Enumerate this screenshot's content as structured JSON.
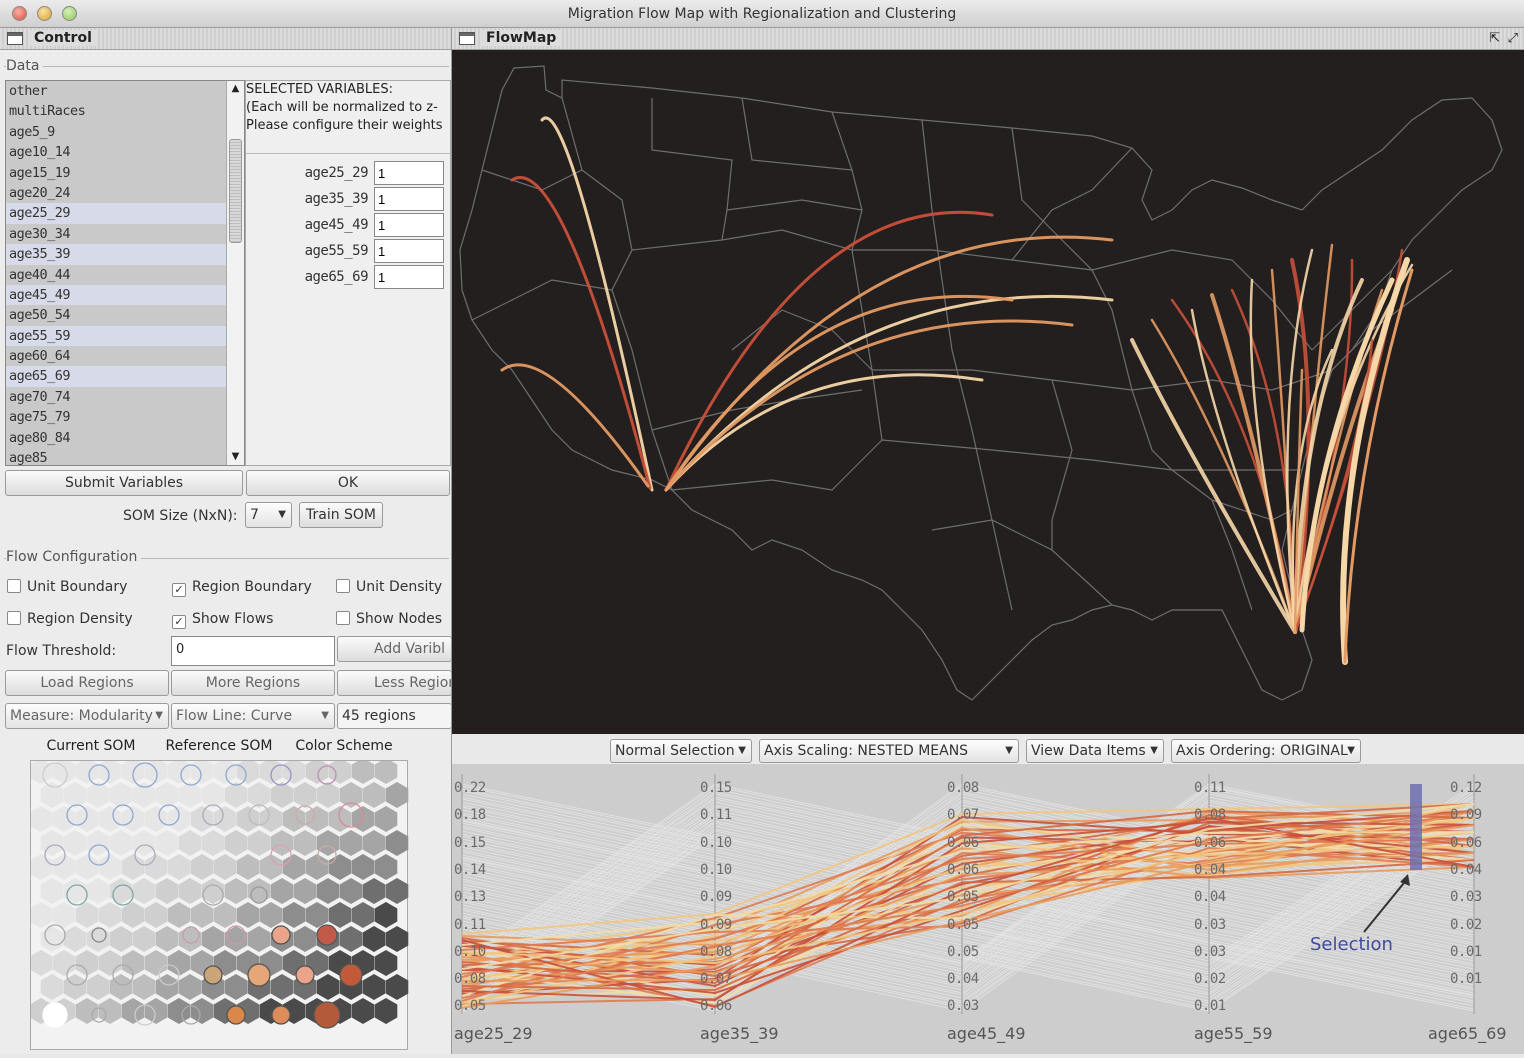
{
  "window": {
    "title": "Migration Flow Map with Regionalization and Clustering"
  },
  "control": {
    "panel_title": "Control",
    "data_group": "Data",
    "variables": [
      "other",
      "multiRaces",
      "age5_9",
      "age10_14",
      "age15_19",
      "age20_24",
      "age25_29",
      "age30_34",
      "age35_39",
      "age40_44",
      "age45_49",
      "age50_54",
      "age55_59",
      "age60_64",
      "age65_69",
      "age70_74",
      "age75_79",
      "age80_84",
      "age85"
    ],
    "selected_variables_text": [
      "SELECTED VARIABLES:",
      "(Each will be normalized to z-",
      "Please configure their weights"
    ],
    "weights": [
      {
        "name": "age25_29",
        "value": "1"
      },
      {
        "name": "age35_39",
        "value": "1"
      },
      {
        "name": "age45_49",
        "value": "1"
      },
      {
        "name": "age55_59",
        "value": "1"
      },
      {
        "name": "age65_69",
        "value": "1"
      }
    ],
    "submit_button": "Submit Variables",
    "ok_button": "OK",
    "som_size_label": "SOM Size (NxN):",
    "som_size_value": "7",
    "train_button": "Train SOM",
    "flow_group": "Flow Configuration",
    "checkboxes": {
      "unit_boundary": {
        "label": "Unit Boundary",
        "checked": false
      },
      "region_boundary": {
        "label": "Region Boundary",
        "checked": true
      },
      "unit_density": {
        "label": "Unit Density",
        "checked": false
      },
      "region_density": {
        "label": "Region Density",
        "checked": false
      },
      "show_flows": {
        "label": "Show Flows",
        "checked": true
      },
      "show_nodes": {
        "label": "Show Nodes",
        "checked": false
      }
    },
    "flow_threshold_label": "Flow Threshold:",
    "flow_threshold_value": "0",
    "add_variable_button": "Add Varibl",
    "load_regions_button": "Load Regions",
    "more_regions_button": "More Regions",
    "less_regions_button": "Less Region",
    "measure_combo": "Measure: Modularity",
    "flowline_combo": "Flow Line: Curve",
    "regions_count": "45 regions",
    "tabs": [
      "Current SOM",
      "Reference SOM",
      "Color Scheme"
    ]
  },
  "flowmap": {
    "panel_title": "FlowMap",
    "colors": {
      "background": "#231f1f",
      "boundary": "#6e6e6e",
      "flow_light": "#f6d7a8",
      "flow_mid": "#e39a63",
      "flow_dark": "#c9503a"
    }
  },
  "pcp": {
    "controls": {
      "selection_mode": "Normal Selection",
      "axis_scaling": "Axis Scaling: NESTED MEANS",
      "view_items": "View Data Items",
      "axis_ordering": "Axis Ordering: ORIGINAL"
    },
    "axes": [
      {
        "name": "age25_29",
        "ticks": [
          "0.22",
          "0.18",
          "0.15",
          "0.14",
          "0.13",
          "0.11",
          "0.10",
          "0.08",
          "0.05"
        ]
      },
      {
        "name": "age35_39",
        "ticks": [
          "0.15",
          "0.11",
          "0.10",
          "0.10",
          "0.09",
          "0.09",
          "0.08",
          "0.07",
          "0.06"
        ]
      },
      {
        "name": "age45_49",
        "ticks": [
          "0.08",
          "0.07",
          "0.06",
          "0.06",
          "0.05",
          "0.05",
          "0.05",
          "0.04",
          "0.03"
        ]
      },
      {
        "name": "age55_59",
        "ticks": [
          "0.11",
          "0.08",
          "0.06",
          "0.04",
          "0.04",
          "0.03",
          "0.03",
          "0.02",
          "0.01"
        ]
      },
      {
        "name": "age65_69",
        "ticks": [
          "0.12",
          "0.09",
          "0.06",
          "0.04",
          "0.03",
          "0.02",
          "0.01",
          "0.01"
        ]
      }
    ],
    "annotation": "Selection"
  }
}
